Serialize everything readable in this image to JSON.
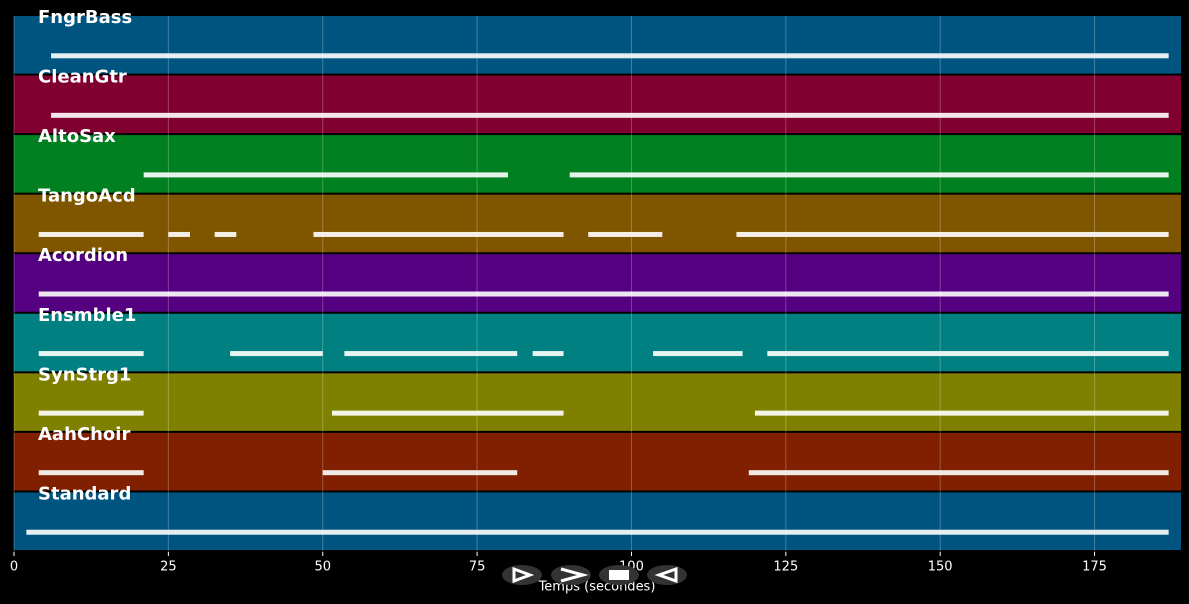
{
  "chart_data": {
    "type": "piano-roll",
    "xlabel": "Temps (secondes)",
    "xlim": [
      0,
      189
    ],
    "xticks": [
      0,
      25,
      50,
      75,
      100,
      125,
      150,
      175
    ],
    "grid": true,
    "tracks": [
      {
        "name": "FngrBass",
        "color": "#005580",
        "segments": [
          [
            6,
            187
          ]
        ]
      },
      {
        "name": "CleanGtr",
        "color": "#800030",
        "segments": [
          [
            6,
            187
          ]
        ]
      },
      {
        "name": "AltoSax",
        "color": "#008020",
        "segments": [
          [
            21,
            80
          ],
          [
            90,
            187
          ]
        ]
      },
      {
        "name": "TangoAcd",
        "color": "#805500",
        "segments": [
          [
            4,
            21
          ],
          [
            25,
            28.5
          ],
          [
            32.5,
            36
          ],
          [
            48.5,
            89
          ],
          [
            93,
            105
          ],
          [
            117,
            187
          ]
        ]
      },
      {
        "name": "Acordion",
        "color": "#550080",
        "segments": [
          [
            4,
            187
          ]
        ]
      },
      {
        "name": "Ensmble1",
        "color": "#008080",
        "segments": [
          [
            4,
            21
          ],
          [
            35,
            50
          ],
          [
            53.5,
            81.5
          ],
          [
            84,
            89
          ],
          [
            103.5,
            118
          ],
          [
            122,
            187
          ]
        ]
      },
      {
        "name": "SynStrg1",
        "color": "#808000",
        "segments": [
          [
            4,
            21
          ],
          [
            51.5,
            89
          ],
          [
            120,
            187
          ]
        ]
      },
      {
        "name": "AahChoir",
        "color": "#802000",
        "segments": [
          [
            4,
            21
          ],
          [
            50,
            81.5
          ],
          [
            119,
            187
          ]
        ]
      },
      {
        "name": "Standard",
        "color": "#005580",
        "segments": [
          [
            2,
            187
          ]
        ]
      }
    ]
  }
}
